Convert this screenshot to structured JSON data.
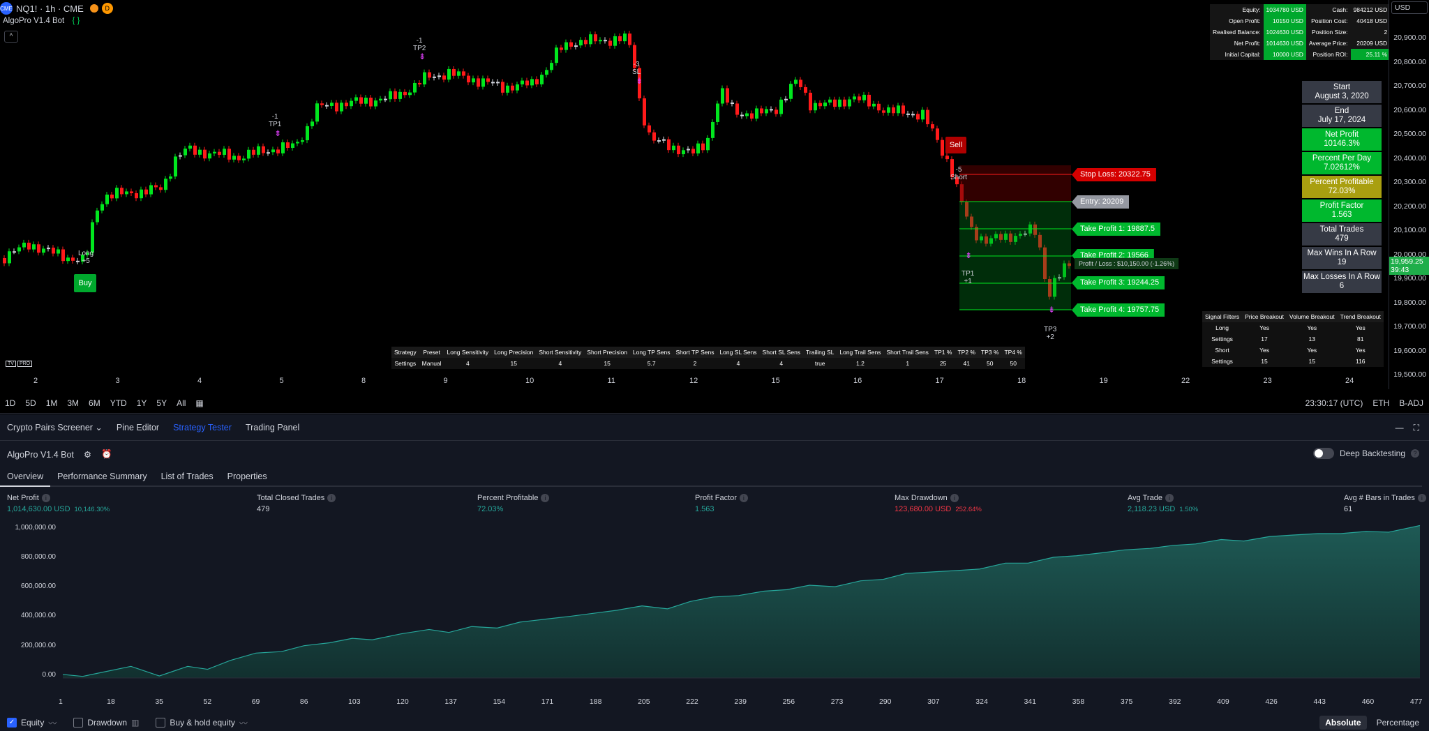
{
  "symbol": {
    "title": "NQ1! · 1h · CME",
    "logo": "CME",
    "interval_badge": "D"
  },
  "indicator": {
    "name": "AlgoPro V1.4 Bot",
    "icon": "settings-loop-icon",
    "collapse": "^"
  },
  "price_axis": {
    "currency": "USD",
    "labels": [
      "20,900.00",
      "20,800.00",
      "20,700.00",
      "20,600.00",
      "20,500.00",
      "20,400.00",
      "20,300.00",
      "20,200.00",
      "20,100.00",
      "20,000.00",
      "19,900.00",
      "19,800.00",
      "19,700.00",
      "19,600.00",
      "19,500.00"
    ],
    "current_price": "19,959.25",
    "countdown": "39:43"
  },
  "time_axis": {
    "labels": [
      "2",
      "3",
      "4",
      "5",
      "8",
      "9",
      "10",
      "11",
      "12",
      "15",
      "16",
      "17",
      "18",
      "19",
      "22",
      "23",
      "24"
    ]
  },
  "brand": {
    "logo": "TV",
    "tag": "PRO"
  },
  "stats_table": [
    {
      "k1": "Equity:",
      "v1": "1034780 USD",
      "k2": "Cash:",
      "v2": "984212 USD"
    },
    {
      "k1": "Open Profit:",
      "v1": "10150 USD",
      "k2": "Position Cost:",
      "v2": "40418 USD"
    },
    {
      "k1": "Realised Balance:",
      "v1": "1024630 USD",
      "k2": "Position Size:",
      "v2": "2"
    },
    {
      "k1": "Net Profit:",
      "v1": "1014630 USD",
      "k2": "Average Price:",
      "v2": "20209 USD"
    },
    {
      "k1": "Initial Capital:",
      "v1": "10000 USD",
      "k2": "Position ROI:",
      "v2": "25.11 %"
    }
  ],
  "stat_panel": [
    {
      "title": "Start",
      "value": "August 3, 2020",
      "style": "gray"
    },
    {
      "title": "End",
      "value": "July 17, 2024",
      "style": "gray"
    },
    {
      "title": "Net Profit",
      "value": "10146.3%",
      "style": "green"
    },
    {
      "title": "Percent Per Day",
      "value": "7.02612%",
      "style": "green"
    },
    {
      "title": "Percent Profitable",
      "value": "72.03%",
      "style": "olive"
    },
    {
      "title": "Profit Factor",
      "value": "1.563",
      "style": "green"
    },
    {
      "title": "Total Trades",
      "value": "479",
      "style": "gray"
    },
    {
      "title": "Max Wins In A Row",
      "value": "19",
      "style": "gray"
    },
    {
      "title": "Max Losses In A Row",
      "value": "6",
      "style": "gray"
    }
  ],
  "trade_labels": {
    "stop_loss": "Stop Loss: 20322.75",
    "entry": "Entry: 20209",
    "tp1": "Take Profit 1: 19887.5",
    "tp2": "Take Profit 2: 19566",
    "tp3": "Take Profit 3: 19244.25",
    "tp4": "Take Profit 4: 19757.75",
    "pnl": "Profit / Loss : $10,150.00 (-1.26%)"
  },
  "chart_markers": {
    "buy": "Buy",
    "sell": "Sell",
    "long": "Long",
    "long_qty": "+5",
    "short": "Short",
    "short_qty": "-5",
    "tp1_a": "TP1",
    "tp1_a_qty": "-1",
    "tp2": "TP2",
    "tp2_qty": "-1",
    "sl": "SL",
    "sl_qty": "-3",
    "tp1_b": "TP1",
    "tp1_b_qty": "+1",
    "tp3": "TP3",
    "tp3_qty": "+2"
  },
  "signal_filters": {
    "header": [
      "Signal Filters",
      "Price Breakout",
      "Volume Breakout",
      "Trend Breakout"
    ],
    "rows": [
      [
        "Long",
        "Yes",
        "Yes",
        "Yes"
      ],
      [
        "Settings",
        "17",
        "13",
        "81"
      ],
      [
        "Short",
        "Yes",
        "Yes",
        "Yes"
      ],
      [
        "Settings",
        "15",
        "15",
        "116"
      ]
    ]
  },
  "strategy_settings": {
    "header": [
      "Strategy",
      "Preset",
      "Long Sensitivity",
      "Long Precision",
      "Short Sensitivity",
      "Short Precision",
      "Long TP Sens",
      "Short TP Sens",
      "Long SL Sens",
      "Short SL Sens",
      "Trailing SL",
      "Long Trail Sens",
      "Short Trail Sens",
      "TP1 %",
      "TP2 %",
      "TP3 %",
      "TP4 %"
    ],
    "row": [
      "Settings",
      "Manual",
      "4",
      "15",
      "4",
      "15",
      "5.7",
      "2",
      "4",
      "4",
      "true",
      "1.2",
      "1",
      "25",
      "41",
      "50",
      "50"
    ]
  },
  "range_bar": {
    "items": [
      "1D",
      "5D",
      "1M",
      "3M",
      "6M",
      "YTD",
      "1Y",
      "5Y",
      "All"
    ],
    "time": "23:30:17 (UTC)",
    "session": "ETH",
    "adj": "B-ADJ"
  },
  "panel_tabs": [
    "Crypto Pairs Screener",
    "Pine Editor",
    "Strategy Tester",
    "Trading Panel"
  ],
  "strategy": {
    "name": "AlgoPro V1.4 Bot",
    "deep_backtesting": "Deep Backtesting"
  },
  "subtabs": [
    "Overview",
    "Performance Summary",
    "List of Trades",
    "Properties"
  ],
  "metrics": [
    {
      "title": "Net Profit",
      "value": "1,014,630.00 USD",
      "extra": "10,146.30%",
      "color": "pos"
    },
    {
      "title": "Total Closed Trades",
      "value": "479",
      "extra": "",
      "color": "wht"
    },
    {
      "title": "Percent Profitable",
      "value": "72.03%",
      "extra": "",
      "color": "pos"
    },
    {
      "title": "Profit Factor",
      "value": "1.563",
      "extra": "",
      "color": "pos"
    },
    {
      "title": "Max Drawdown",
      "value": "123,680.00 USD",
      "extra": "252.64%",
      "color": "neg"
    },
    {
      "title": "Avg Trade",
      "value": "2,118.23 USD",
      "extra": "1.50%",
      "color": "pos"
    },
    {
      "title": "Avg # Bars in Trades",
      "value": "61",
      "extra": "",
      "color": "wht"
    }
  ],
  "chart_data": {
    "type": "area",
    "title": "",
    "ylabel": "",
    "xlabel": "",
    "y_ticks": [
      "1,000,000.00",
      "800,000.00",
      "600,000.00",
      "400,000.00",
      "200,000.00",
      "0.00"
    ],
    "x_ticks": [
      "1",
      "18",
      "35",
      "52",
      "69",
      "86",
      "103",
      "120",
      "137",
      "154",
      "171",
      "188",
      "205",
      "222",
      "239",
      "256",
      "273",
      "290",
      "307",
      "324",
      "341",
      "358",
      "375",
      "392",
      "409",
      "426",
      "443",
      "460",
      "477"
    ],
    "ylim": [
      0,
      1050000
    ],
    "xlim": [
      1,
      479
    ],
    "series": [
      {
        "values": [
          [
            1,
            5000
          ],
          [
            8,
            -8000
          ],
          [
            15,
            20000
          ],
          [
            25,
            60000
          ],
          [
            35,
            -5000
          ],
          [
            45,
            60000
          ],
          [
            52,
            40000
          ],
          [
            60,
            100000
          ],
          [
            69,
            150000
          ],
          [
            78,
            160000
          ],
          [
            86,
            200000
          ],
          [
            95,
            220000
          ],
          [
            103,
            250000
          ],
          [
            110,
            240000
          ],
          [
            120,
            280000
          ],
          [
            130,
            310000
          ],
          [
            137,
            290000
          ],
          [
            145,
            330000
          ],
          [
            154,
            320000
          ],
          [
            162,
            360000
          ],
          [
            171,
            380000
          ],
          [
            180,
            400000
          ],
          [
            188,
            420000
          ],
          [
            196,
            440000
          ],
          [
            205,
            470000
          ],
          [
            214,
            450000
          ],
          [
            222,
            500000
          ],
          [
            230,
            530000
          ],
          [
            239,
            540000
          ],
          [
            248,
            570000
          ],
          [
            256,
            580000
          ],
          [
            264,
            610000
          ],
          [
            273,
            600000
          ],
          [
            282,
            640000
          ],
          [
            290,
            650000
          ],
          [
            298,
            690000
          ],
          [
            307,
            700000
          ],
          [
            316,
            710000
          ],
          [
            324,
            720000
          ],
          [
            333,
            760000
          ],
          [
            341,
            760000
          ],
          [
            350,
            800000
          ],
          [
            358,
            810000
          ],
          [
            367,
            830000
          ],
          [
            375,
            850000
          ],
          [
            384,
            860000
          ],
          [
            392,
            880000
          ],
          [
            400,
            890000
          ],
          [
            409,
            920000
          ],
          [
            417,
            910000
          ],
          [
            426,
            940000
          ],
          [
            434,
            950000
          ],
          [
            443,
            960000
          ],
          [
            451,
            960000
          ],
          [
            460,
            975000
          ],
          [
            468,
            970000
          ],
          [
            479,
            1015000
          ]
        ]
      }
    ]
  },
  "equity_legend": {
    "equity": "Equity",
    "drawdown": "Drawdown",
    "buyhold": "Buy & hold equity",
    "absolute": "Absolute",
    "percentage": "Percentage"
  }
}
